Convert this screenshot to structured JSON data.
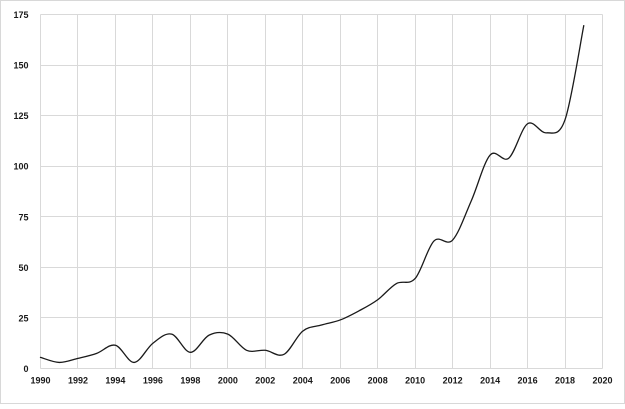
{
  "figure": {
    "background_color": "#ffffff",
    "border_color": "#d8d8d8"
  },
  "chart_data": {
    "type": "line",
    "smooth": true,
    "grid": true,
    "legend": "none",
    "gridline_color": "#d9d9d9",
    "tick_label_color": "#1a1a1a",
    "xlim": [
      1990,
      2020
    ],
    "ylim": [
      0,
      175
    ],
    "xticks": [
      1990,
      1992,
      1994,
      1996,
      1998,
      2000,
      2002,
      2004,
      2006,
      2008,
      2010,
      2012,
      2014,
      2016,
      2018,
      2020
    ],
    "yticks": [
      0,
      25,
      50,
      75,
      100,
      125,
      150,
      175
    ],
    "x": [
      1990,
      1991,
      1992,
      1993,
      1994,
      1995,
      1996,
      1997,
      1998,
      1999,
      2000,
      2001,
      2002,
      2003,
      2004,
      2005,
      2006,
      2007,
      2008,
      2009,
      2010,
      2011,
      2012,
      2013,
      2014,
      2015,
      2016,
      2017,
      2018,
      2019
    ],
    "series": [
      {
        "name": "",
        "color": "#1a1a1a",
        "values": [
          5.5,
          3,
          5,
          7.5,
          11.5,
          3,
          12.5,
          17,
          8,
          16.5,
          17,
          9,
          9,
          7,
          18.5,
          21.5,
          24,
          28.5,
          34,
          42,
          44.5,
          63,
          63.5,
          83,
          105.5,
          104,
          121,
          116.5,
          123,
          169.5
        ]
      }
    ]
  }
}
